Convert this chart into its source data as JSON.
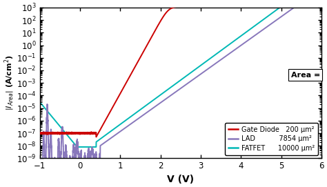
{
  "xlabel": "V (V)",
  "xlim": [
    -1,
    6
  ],
  "ylog_min": -9,
  "ylog_max": 3,
  "xticks": [
    -1,
    0,
    1,
    2,
    3,
    4,
    5,
    6
  ],
  "line_gate_color": "#cc0000",
  "line_lad_color": "#8877bb",
  "line_fatfet_color": "#00b8b5",
  "legend_area_title": "Area =",
  "legend_gate_label": "Gate Diode",
  "legend_gate_area": "200 μm²",
  "legend_lad_label": "LAD",
  "legend_lad_area": "7854 μm²",
  "legend_fatfet_label": "FATFET",
  "legend_fatfet_area": "10000 μm²",
  "fig_width": 4.74,
  "fig_height": 2.71,
  "dpi": 100
}
